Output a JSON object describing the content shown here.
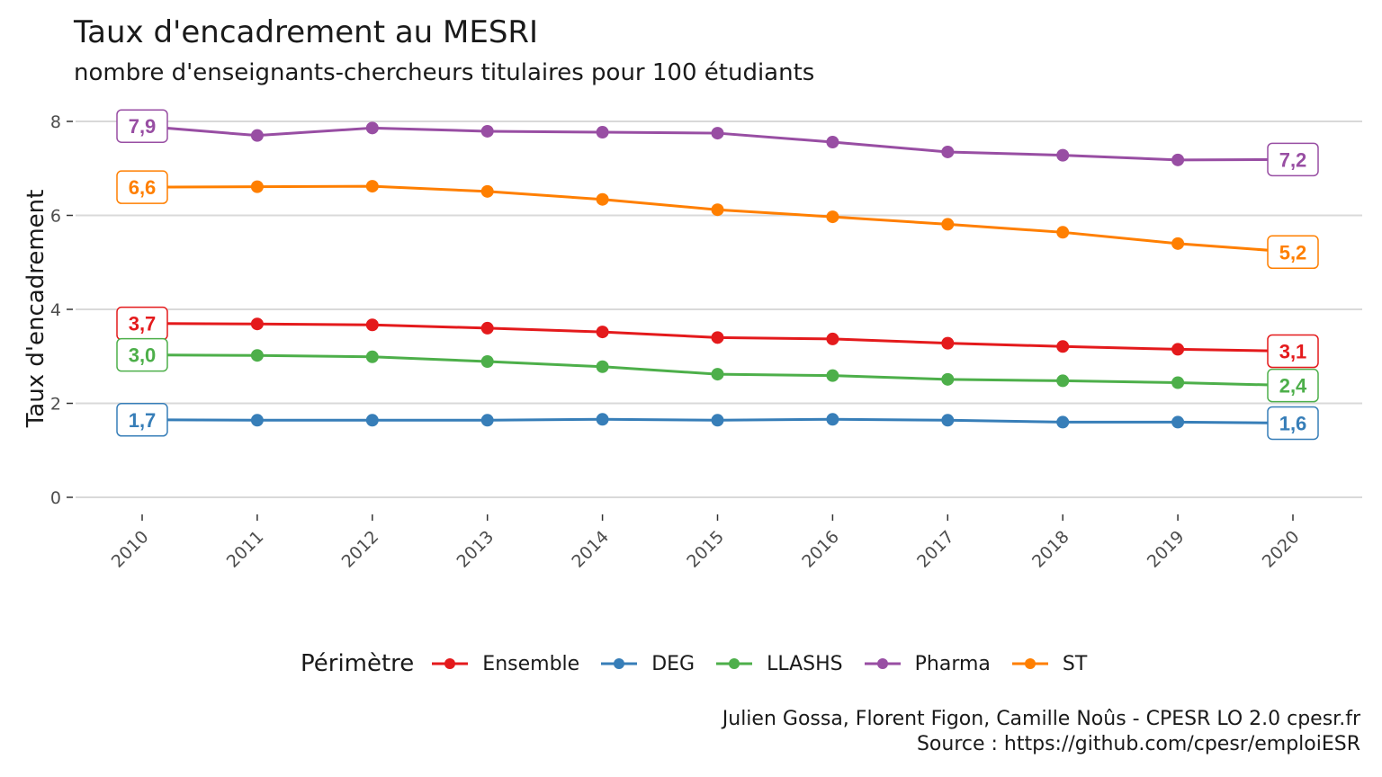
{
  "title": "Taux d'encadrement au MESRI",
  "subtitle": "nombre d'enseignants-chercheurs titulaires pour 100 étudiants",
  "caption": {
    "line1": "Julien Gossa, Florent Figon, Camille Noûs - CPESR LO 2.0 cpesr.fr",
    "line2": "Source : https://github.com/cpesr/emploiESR"
  },
  "legend": {
    "title": "Périmètre",
    "items": [
      {
        "label": "Ensemble",
        "color": "#E41A1C"
      },
      {
        "label": "DEG",
        "color": "#377EB8"
      },
      {
        "label": "LLASHS",
        "color": "#4DAF4A"
      },
      {
        "label": "Pharma",
        "color": "#984EA3"
      },
      {
        "label": "ST",
        "color": "#FF7F00"
      }
    ]
  },
  "chart_data": {
    "type": "line",
    "ylabel": "Taux d'encadrement",
    "xlabel": "",
    "ylim": [
      0,
      8.4
    ],
    "yticks": [
      0,
      2,
      4,
      6,
      8
    ],
    "grid": true,
    "legend_position": "bottom",
    "x": [
      "2010",
      "2011",
      "2012",
      "2013",
      "2014",
      "2015",
      "2016",
      "2017",
      "2018",
      "2019",
      "2020"
    ],
    "series": [
      {
        "name": "Ensemble",
        "color": "#E41A1C",
        "start_label": "3,7",
        "end_label": "3,1",
        "values": [
          3.7,
          3.69,
          3.67,
          3.6,
          3.52,
          3.4,
          3.37,
          3.28,
          3.21,
          3.15,
          3.11
        ]
      },
      {
        "name": "DEG",
        "color": "#377EB8",
        "start_label": "1,7",
        "end_label": "1,6",
        "values": [
          1.65,
          1.64,
          1.64,
          1.64,
          1.66,
          1.64,
          1.66,
          1.64,
          1.6,
          1.6,
          1.58
        ]
      },
      {
        "name": "LLASHS",
        "color": "#4DAF4A",
        "start_label": "3,0",
        "end_label": "2,4",
        "values": [
          3.03,
          3.02,
          2.99,
          2.89,
          2.78,
          2.62,
          2.59,
          2.51,
          2.48,
          2.44,
          2.38
        ]
      },
      {
        "name": "Pharma",
        "color": "#984EA3",
        "start_label": "7,9",
        "end_label": "7,2",
        "values": [
          7.9,
          7.7,
          7.86,
          7.79,
          7.77,
          7.75,
          7.56,
          7.35,
          7.28,
          7.18,
          7.19
        ]
      },
      {
        "name": "ST",
        "color": "#FF7F00",
        "start_label": "6,6",
        "end_label": "5,2",
        "values": [
          6.6,
          6.61,
          6.62,
          6.51,
          6.34,
          6.12,
          5.97,
          5.81,
          5.64,
          5.4,
          5.22
        ]
      }
    ]
  }
}
